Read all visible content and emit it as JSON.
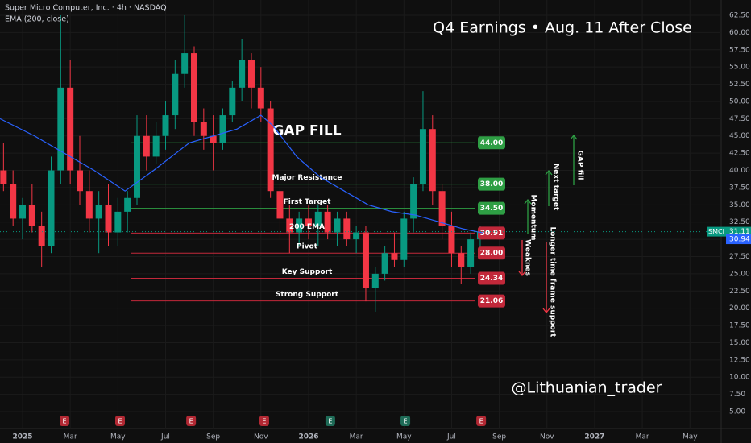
{
  "chart_data": {
    "type": "candlestick",
    "title": "Q4 Earnings • Aug. 11 After Close",
    "subtitle": "Super Micro Computer, Inc. · 4h · NASDAQ",
    "indicator_name": "EMA (200, close)",
    "watermark": "@Lithuanian_trader",
    "symbol": "SMCI",
    "up_color": "#089981",
    "down_color": "#f23645",
    "ema_color": "#2962ff",
    "xlim": [
      -0.947,
      29.31
    ],
    "ylim": [
      2.55,
      64.72
    ],
    "xticks": [
      {
        "value": 0,
        "label": "2025"
      },
      {
        "value": 2,
        "label": "Mar"
      },
      {
        "value": 4,
        "label": "May"
      },
      {
        "value": 6,
        "label": "Jul"
      },
      {
        "value": 8,
        "label": "Sep"
      },
      {
        "value": 10,
        "label": "Nov"
      },
      {
        "value": 12,
        "label": "2026"
      },
      {
        "value": 14,
        "label": "Mar"
      },
      {
        "value": 16,
        "label": "May"
      },
      {
        "value": 18,
        "label": "Jul"
      },
      {
        "value": 20,
        "label": "Sep"
      },
      {
        "value": 22,
        "label": "Nov"
      },
      {
        "value": 24,
        "label": "2027"
      },
      {
        "value": 26,
        "label": "Mar"
      },
      {
        "value": 28,
        "label": "May"
      }
    ],
    "yticks": [
      {
        "value": 5,
        "label": "5.00"
      },
      {
        "value": 7.5,
        "label": "7.50"
      },
      {
        "value": 10,
        "label": "10.00"
      },
      {
        "value": 12.5,
        "label": "12.50"
      },
      {
        "value": 15,
        "label": "15.00"
      },
      {
        "value": 17.5,
        "label": "17.50"
      },
      {
        "value": 20,
        "label": "20.00"
      },
      {
        "value": 22.5,
        "label": "22.50"
      },
      {
        "value": 25,
        "label": "25.00"
      },
      {
        "value": 27.5,
        "label": "27.50"
      },
      {
        "value": 30,
        "label": "30.00"
      },
      {
        "value": 32.5,
        "label": "32.50"
      },
      {
        "value": 35,
        "label": "35.00"
      },
      {
        "value": 37.5,
        "label": "37.50"
      },
      {
        "value": 40,
        "label": "40.00"
      },
      {
        "value": 42.5,
        "label": "42.50"
      },
      {
        "value": 45,
        "label": "45.00"
      },
      {
        "value": 47.5,
        "label": "47.50"
      },
      {
        "value": 50,
        "label": "50.00"
      },
      {
        "value": 52.5,
        "label": "52.50"
      },
      {
        "value": 55,
        "label": "55.00"
      },
      {
        "value": 57.5,
        "label": "57.50"
      },
      {
        "value": 60,
        "label": "60.00"
      },
      {
        "value": 62.5,
        "label": "62.50"
      }
    ],
    "grid": true,
    "candles": {
      "x": [
        -0.8,
        -0.4,
        0,
        0.4,
        0.8,
        1.2,
        1.6,
        2,
        2.4,
        2.8,
        3.2,
        3.6,
        4,
        4.4,
        4.8,
        5.2,
        5.6,
        6,
        6.4,
        6.8,
        7.2,
        7.6,
        8,
        8.4,
        8.8,
        9.2,
        9.6,
        10,
        10.4,
        10.8,
        11.2,
        11.6,
        12,
        12.4,
        12.8,
        13.2,
        13.6,
        14,
        14.4,
        14.8,
        15.2,
        15.6,
        16,
        16.4,
        16.8,
        17.2,
        17.6,
        18,
        18.4,
        18.8,
        19.2
      ],
      "open": [
        40,
        38,
        33,
        35,
        32,
        29,
        40,
        52,
        40,
        37,
        33,
        35,
        31,
        34,
        36,
        45,
        42,
        45,
        48,
        54,
        57,
        47,
        45,
        44,
        48,
        52,
        56,
        52,
        49,
        37,
        33,
        31,
        33,
        32,
        34,
        31,
        33,
        30,
        31,
        23,
        25,
        28,
        27,
        33,
        38,
        46,
        37,
        32,
        28,
        26,
        30
      ],
      "high": [
        44,
        40,
        36,
        38,
        34,
        42,
        62.5,
        56,
        45,
        40,
        37,
        38,
        36,
        37,
        48,
        48,
        47,
        50,
        56,
        62.5,
        58,
        49,
        48,
        49,
        53,
        59,
        57,
        55,
        50,
        38,
        35,
        34,
        35,
        35,
        35,
        34,
        34,
        32,
        32,
        26,
        29,
        31,
        34,
        39,
        51.5,
        48,
        38,
        34,
        29,
        31,
        32
      ],
      "low": [
        37,
        32,
        30,
        31,
        26,
        28,
        38,
        38,
        35,
        31,
        28,
        29,
        29,
        31,
        35,
        40,
        41,
        43,
        46,
        52,
        45,
        43,
        40,
        43,
        47,
        50,
        49,
        47,
        36,
        30,
        28,
        29,
        30,
        29,
        30,
        29,
        29,
        28,
        21,
        19.5,
        24,
        26,
        26,
        31,
        37,
        35,
        30,
        26,
        23.5,
        25,
        28
      ],
      "close": [
        38,
        33,
        35,
        32,
        29,
        40,
        52,
        40,
        37,
        33,
        35,
        31,
        34,
        36,
        45,
        42,
        45,
        48,
        54,
        57,
        47,
        45,
        44,
        48,
        52,
        56,
        52,
        49,
        37,
        33,
        31,
        33,
        32,
        34,
        31,
        33,
        30,
        31,
        23,
        25,
        28,
        27,
        33,
        38,
        46,
        37,
        32,
        28,
        26,
        30,
        31.11
      ]
    },
    "ema": {
      "name": "EMA (200, close)",
      "x": [
        -0.947,
        0.5,
        2,
        3,
        4.3,
        5.5,
        7,
        8,
        9,
        10,
        10.5,
        11.5,
        12.5,
        13.5,
        14.5,
        15.5,
        16.5,
        17.5,
        18.5,
        19.3
      ],
      "values": [
        47.5,
        45,
        42,
        40,
        37,
        40,
        44,
        45,
        46,
        48,
        46.5,
        42,
        39,
        37,
        35,
        34,
        33.5,
        32.5,
        31.5,
        30.94
      ]
    },
    "levels": [
      {
        "value": 44,
        "value_label": "44.00",
        "text": "GAP FILL",
        "color": "#2e9e44"
      },
      {
        "value": 38,
        "value_label": "38.00",
        "text": "Major Resistance",
        "color": "#2e9e44"
      },
      {
        "value": 34.5,
        "value_label": "34.50",
        "text": "First Target",
        "color": "#2e9e44"
      },
      {
        "value": 30.91,
        "text": "200 EMA",
        "color": "#c2283a"
      },
      {
        "value": 28,
        "value_label": "28.00",
        "text": "Pivot",
        "color": "#c2283a"
      },
      {
        "value": 24.34,
        "text": "Key Support",
        "color": "#c2283a"
      },
      {
        "value": 21.06,
        "text": "Strong Support",
        "color": "#c2283a"
      }
    ],
    "annotations": [
      {
        "text": "GAP fill",
        "color": "#2e9e44"
      },
      {
        "text": "Next target",
        "color": "#2e9e44"
      },
      {
        "text": "Momentum",
        "color": "#2e9e44"
      },
      {
        "text": "Weaknes",
        "color": "#f23645"
      },
      {
        "text": "Longer time frame support",
        "color": "#f23645"
      }
    ],
    "earnings": [
      {
        "x": 1.76,
        "label": "E",
        "color": "#b22833"
      },
      {
        "x": 4.09,
        "label": "E",
        "color": "#b22833"
      },
      {
        "x": 7.07,
        "label": "E",
        "color": "#b22833"
      },
      {
        "x": 10.14,
        "label": "E",
        "color": "#b22833"
      },
      {
        "x": 12.91,
        "label": "E",
        "color": "#1e6b57"
      },
      {
        "x": 16.06,
        "label": "E",
        "color": "#1e6b57"
      },
      {
        "x": 19.24,
        "label": "E",
        "color": "#b22833"
      }
    ]
  }
}
